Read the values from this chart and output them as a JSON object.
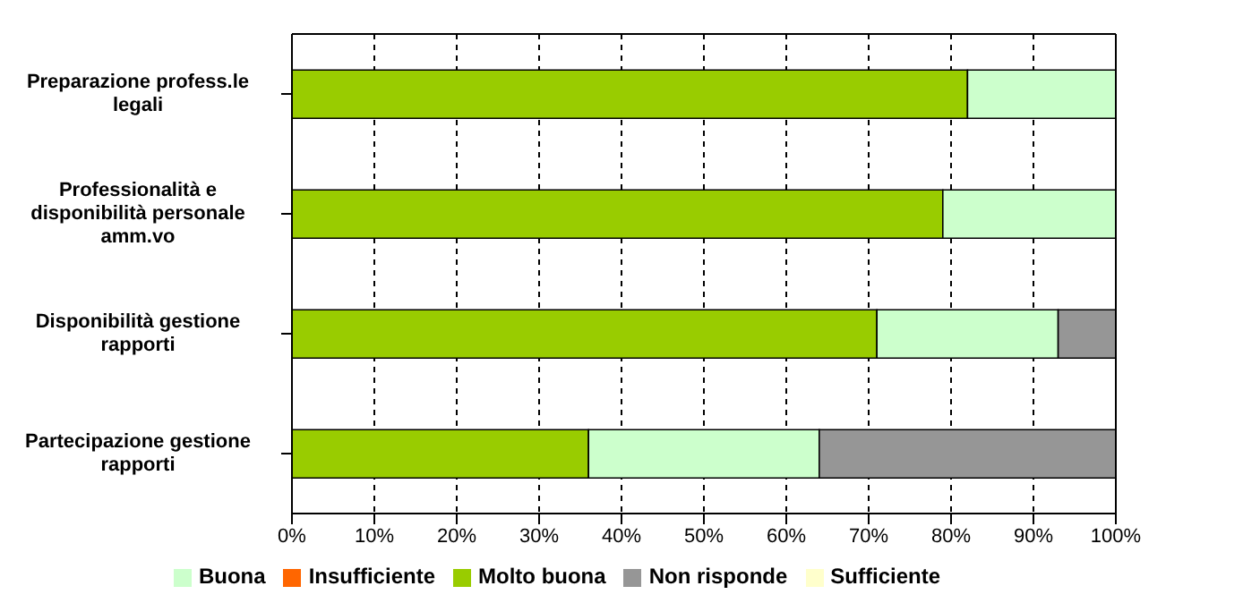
{
  "chart_data": {
    "type": "bar",
    "orientation": "horizontal",
    "stacked": true,
    "categories": [
      "Preparazione profess.le legali",
      "Professionalità e disponibilità personale amm.vo",
      "Disponibilità gestione rapporti",
      "Partecipazione gestione rapporti"
    ],
    "series": [
      {
        "name": "Molto buona",
        "color": "#99cc00",
        "values": [
          82,
          79,
          71,
          36
        ]
      },
      {
        "name": "Buona",
        "color": "#ccffcc",
        "values": [
          18,
          21,
          22,
          28
        ]
      },
      {
        "name": "Sufficiente",
        "color": "#ffffcc",
        "values": [
          0,
          0,
          0,
          0
        ]
      },
      {
        "name": "Insufficiente",
        "color": "#ff6600",
        "values": [
          0,
          0,
          0,
          0
        ]
      },
      {
        "name": "Non risponde",
        "color": "#969696",
        "values": [
          0,
          0,
          7,
          36
        ]
      }
    ],
    "xlim": [
      0,
      100
    ],
    "xticks": [
      {
        "value": 0,
        "label": "0%"
      },
      {
        "value": 10,
        "label": "10%"
      },
      {
        "value": 20,
        "label": "20%"
      },
      {
        "value": 30,
        "label": "30%"
      },
      {
        "value": 40,
        "label": "40%"
      },
      {
        "value": 50,
        "label": "50%"
      },
      {
        "value": 60,
        "label": "60%"
      },
      {
        "value": 70,
        "label": "70%"
      },
      {
        "value": 80,
        "label": "80%"
      },
      {
        "value": 90,
        "label": "90%"
      },
      {
        "value": 100,
        "label": "100%"
      }
    ],
    "grid": "x",
    "legend": "bottom"
  }
}
